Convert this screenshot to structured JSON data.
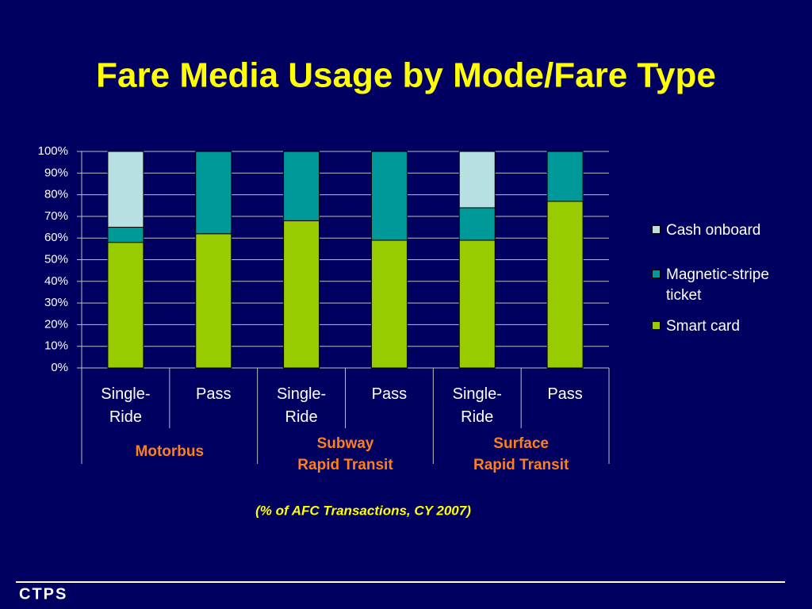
{
  "chart_data": {
    "type": "stacked_bar",
    "title": "Fare Media Usage by Mode/Fare Type",
    "subtitle": "(% of AFC Transactions, CY 2007)",
    "categories": [
      "Single-\nRide",
      "Pass",
      "Single-\nRide",
      "Pass",
      "Single-\nRide",
      "Pass"
    ],
    "groups": [
      "Motorbus",
      "Subway\nRapid Transit",
      "Surface\nRapid Transit"
    ],
    "series": [
      {
        "name": "Smart card",
        "color": "#99cc00",
        "values": [
          58,
          62,
          68,
          59,
          59,
          77
        ]
      },
      {
        "name": "Magnetic-stripe\nticket",
        "color": "#009999",
        "values": [
          7,
          38,
          32,
          41,
          15,
          23
        ]
      },
      {
        "name": "Cash onboard",
        "color": "#b8dfe2",
        "values": [
          35,
          0,
          0,
          0,
          26,
          0
        ]
      }
    ],
    "ylim": [
      0,
      100
    ],
    "yticks": [
      {
        "value": 0,
        "label": "0%"
      },
      {
        "value": 10,
        "label": "10%"
      },
      {
        "value": 20,
        "label": "20%"
      },
      {
        "value": 30,
        "label": "30%"
      },
      {
        "value": 40,
        "label": "40%"
      },
      {
        "value": 50,
        "label": "50%"
      },
      {
        "value": 60,
        "label": "60%"
      },
      {
        "value": 70,
        "label": "70%"
      },
      {
        "value": 80,
        "label": "80%"
      },
      {
        "value": 90,
        "label": "90%"
      },
      {
        "value": 100,
        "label": "100%"
      }
    ],
    "grid": true,
    "legend": "right"
  },
  "footer": {
    "logo": "CTPS"
  }
}
